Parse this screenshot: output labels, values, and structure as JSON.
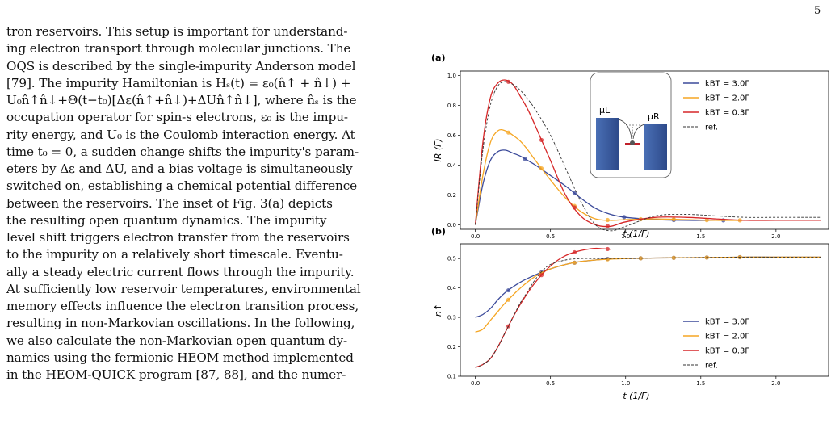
{
  "page_number": "5",
  "body_lines": [
    "tron reservoirs. This setup is important for understand-",
    "ing electron transport through molecular junctions. The",
    "OQS is described by the single-impurity Anderson model",
    "[79]. The impurity Hamiltonian is Hₛ(t) = ε₀(n̂↑ + n̂↓) +",
    "U₀n̂↑n̂↓+Θ(t−t₀)[Δε(n̂↑+n̂↓)+ΔUn̂↑n̂↓], where n̂ₛ is the",
    "occupation operator for spin-s electrons, ε₀ is the impu-",
    "rity energy, and U₀ is the Coulomb interaction energy. At",
    "time t₀ = 0, a sudden change shifts the impurity's param-",
    "eters by Δε and ΔU, and a bias voltage is simultaneously",
    "switched on, establishing a chemical potential difference",
    "between the reservoirs. The inset of Fig. 3(a) depicts",
    "the resulting open quantum dynamics. The impurity",
    "level shift triggers electron transfer from the reservoirs",
    "to the impurity on a relatively short timescale. Eventu-",
    "ally a steady electric current flows through the impurity.",
    "At sufficiently low reservoir temperatures, environmental",
    "memory effects influence the electron transition process,",
    "resulting in non-Markovian oscillations. In the following,",
    "we also calculate the non-Markovian open quantum dy-",
    "namics using the fermionic HEOM method implemented",
    "in the HEOM-QUICK program [87, 88], and the numer-"
  ],
  "figure": {
    "colors": {
      "T3": "#3b4a9a",
      "T2": "#f5a623",
      "T03": "#d62728",
      "ref": "#333333"
    },
    "inset": {
      "mu_left": "μL",
      "mu_right": "μR"
    }
  },
  "chart_data": [
    {
      "type": "line",
      "panel_label": "(a)",
      "xlabel": "t (1/Γ)",
      "ylabel": "IR (Γ)",
      "xlim": [
        -0.1,
        2.35
      ],
      "ylim": [
        -0.03,
        1.03
      ],
      "x_ticks": [
        "0.0",
        "0.5",
        "1.0",
        "1.5",
        "2.0"
      ],
      "y_ticks": [
        "0.0",
        "0.2",
        "0.4",
        "0.6",
        "0.8",
        "1.0"
      ],
      "legend_position": "top-right",
      "legend": [
        "kBT = 3.0Γ",
        "kBT = 2.0Γ",
        "kBT = 0.3Γ",
        "ref."
      ],
      "series": [
        {
          "name": "kBT = 3.0Γ",
          "color_key": "T3",
          "x": [
            0,
            0.05,
            0.1,
            0.15,
            0.2,
            0.25,
            0.3,
            0.35,
            0.4,
            0.5,
            0.6,
            0.7,
            0.8,
            0.9,
            1.0,
            1.2,
            1.4,
            1.6,
            1.8,
            2.0,
            2.2,
            2.3
          ],
          "y": [
            0,
            0.27,
            0.43,
            0.49,
            0.5,
            0.48,
            0.46,
            0.43,
            0.4,
            0.33,
            0.26,
            0.18,
            0.11,
            0.07,
            0.05,
            0.035,
            0.03,
            0.03,
            0.03,
            0.03,
            0.03,
            0.03
          ],
          "markers_x": [
            0.33,
            0.66,
            0.99,
            1.32,
            1.65
          ]
        },
        {
          "name": "kBT = 2.0Γ",
          "color_key": "T2",
          "x": [
            0,
            0.05,
            0.1,
            0.15,
            0.2,
            0.25,
            0.3,
            0.35,
            0.4,
            0.5,
            0.6,
            0.7,
            0.8,
            0.9,
            1.0,
            1.2,
            1.4,
            1.6,
            1.8,
            2.0,
            2.2,
            2.3
          ],
          "y": [
            0,
            0.33,
            0.55,
            0.63,
            0.63,
            0.6,
            0.56,
            0.5,
            0.43,
            0.3,
            0.18,
            0.09,
            0.04,
            0.03,
            0.035,
            0.04,
            0.035,
            0.03,
            0.03,
            0.03,
            0.03,
            0.03
          ],
          "markers_x": [
            0.22,
            0.44,
            0.66,
            0.88,
            1.1,
            1.32,
            1.54,
            1.76
          ]
        },
        {
          "name": "kBT = 0.3Γ",
          "color_key": "T03",
          "x": [
            0,
            0.05,
            0.1,
            0.15,
            0.2,
            0.25,
            0.3,
            0.35,
            0.4,
            0.5,
            0.6,
            0.7,
            0.8,
            0.9,
            1.0,
            1.2,
            1.4,
            1.6,
            1.8,
            2.0,
            2.2,
            2.3
          ],
          "y": [
            0,
            0.55,
            0.85,
            0.95,
            0.97,
            0.94,
            0.86,
            0.77,
            0.66,
            0.43,
            0.2,
            0.06,
            0.0,
            -0.01,
            0.02,
            0.05,
            0.05,
            0.04,
            0.03,
            0.03,
            0.03,
            0.03
          ],
          "markers_x": [
            0.22,
            0.44,
            0.66,
            0.88
          ]
        },
        {
          "name": "ref.",
          "color_key": "ref",
          "dashed": true,
          "x": [
            0,
            0.05,
            0.1,
            0.15,
            0.2,
            0.25,
            0.3,
            0.35,
            0.4,
            0.5,
            0.6,
            0.7,
            0.8,
            0.9,
            1.0,
            1.2,
            1.4,
            1.6,
            1.8,
            2.0,
            2.2,
            2.3
          ],
          "y": [
            0,
            0.5,
            0.8,
            0.93,
            0.96,
            0.94,
            0.9,
            0.84,
            0.77,
            0.6,
            0.38,
            0.16,
            0.0,
            -0.04,
            -0.01,
            0.06,
            0.07,
            0.06,
            0.05,
            0.05,
            0.05,
            0.05
          ]
        }
      ]
    },
    {
      "type": "line",
      "panel_label": "(b)",
      "xlabel": "t (1/Γ)",
      "ylabel": "n↑",
      "xlim": [
        -0.1,
        2.35
      ],
      "ylim": [
        0.1,
        0.55
      ],
      "x_ticks": [
        "0.0",
        "0.5",
        "1.0",
        "1.5",
        "2.0"
      ],
      "y_ticks": [
        "0.1",
        "0.2",
        "0.3",
        "0.4",
        "0.5"
      ],
      "legend_position": "bottom-right",
      "legend": [
        "kBT = 3.0Γ",
        "kBT = 2.0Γ",
        "kBT = 0.3Γ",
        "ref."
      ],
      "series": [
        {
          "name": "kBT = 3.0Γ",
          "color_key": "T3",
          "x": [
            0,
            0.05,
            0.1,
            0.15,
            0.2,
            0.3,
            0.4,
            0.5,
            0.6,
            0.7,
            0.8,
            0.9,
            1.0,
            1.2,
            1.4,
            1.6,
            1.8,
            2.0,
            2.2,
            2.3
          ],
          "y": [
            0.3,
            0.31,
            0.33,
            0.36,
            0.385,
            0.42,
            0.445,
            0.465,
            0.48,
            0.49,
            0.495,
            0.5,
            0.5,
            0.502,
            0.503,
            0.504,
            0.505,
            0.505,
            0.505,
            0.505
          ],
          "markers_x": [
            0.22,
            0.44,
            0.66,
            0.88,
            1.1,
            1.32,
            1.54,
            1.76
          ]
        },
        {
          "name": "kBT = 2.0Γ",
          "color_key": "T2",
          "x": [
            0,
            0.05,
            0.1,
            0.15,
            0.2,
            0.3,
            0.4,
            0.5,
            0.6,
            0.7,
            0.8,
            0.9,
            1.0,
            1.2,
            1.4,
            1.6,
            1.8,
            2.0,
            2.2,
            2.3
          ],
          "y": [
            0.25,
            0.26,
            0.29,
            0.32,
            0.35,
            0.4,
            0.44,
            0.465,
            0.48,
            0.49,
            0.495,
            0.498,
            0.5,
            0.502,
            0.503,
            0.504,
            0.505,
            0.505,
            0.505,
            0.505
          ],
          "markers_x": [
            0.22,
            0.44,
            0.66,
            0.88,
            1.1,
            1.32,
            1.54,
            1.76
          ]
        },
        {
          "name": "kBT = 0.3Γ",
          "color_key": "T03",
          "x": [
            0,
            0.05,
            0.1,
            0.15,
            0.2,
            0.25,
            0.3,
            0.35,
            0.4,
            0.45,
            0.5,
            0.55,
            0.6,
            0.65,
            0.7,
            0.75,
            0.8,
            0.85,
            0.9
          ],
          "y": [
            0.13,
            0.14,
            0.16,
            0.2,
            0.25,
            0.3,
            0.345,
            0.385,
            0.42,
            0.45,
            0.475,
            0.495,
            0.51,
            0.52,
            0.527,
            0.532,
            0.535,
            0.533,
            0.532
          ],
          "markers_x": [
            0.22,
            0.44,
            0.66,
            0.88
          ]
        },
        {
          "name": "ref.",
          "color_key": "ref",
          "dashed": true,
          "x": [
            0,
            0.05,
            0.1,
            0.15,
            0.2,
            0.25,
            0.3,
            0.35,
            0.4,
            0.45,
            0.5,
            0.6,
            0.7,
            0.8,
            0.9,
            1.0,
            1.2,
            1.4,
            1.6,
            1.8,
            2.0,
            2.2,
            2.3
          ],
          "y": [
            0.13,
            0.14,
            0.16,
            0.2,
            0.25,
            0.3,
            0.35,
            0.39,
            0.43,
            0.46,
            0.48,
            0.495,
            0.5,
            0.5,
            0.5,
            0.5,
            0.502,
            0.503,
            0.504,
            0.505,
            0.505,
            0.505,
            0.505
          ]
        }
      ]
    }
  ]
}
